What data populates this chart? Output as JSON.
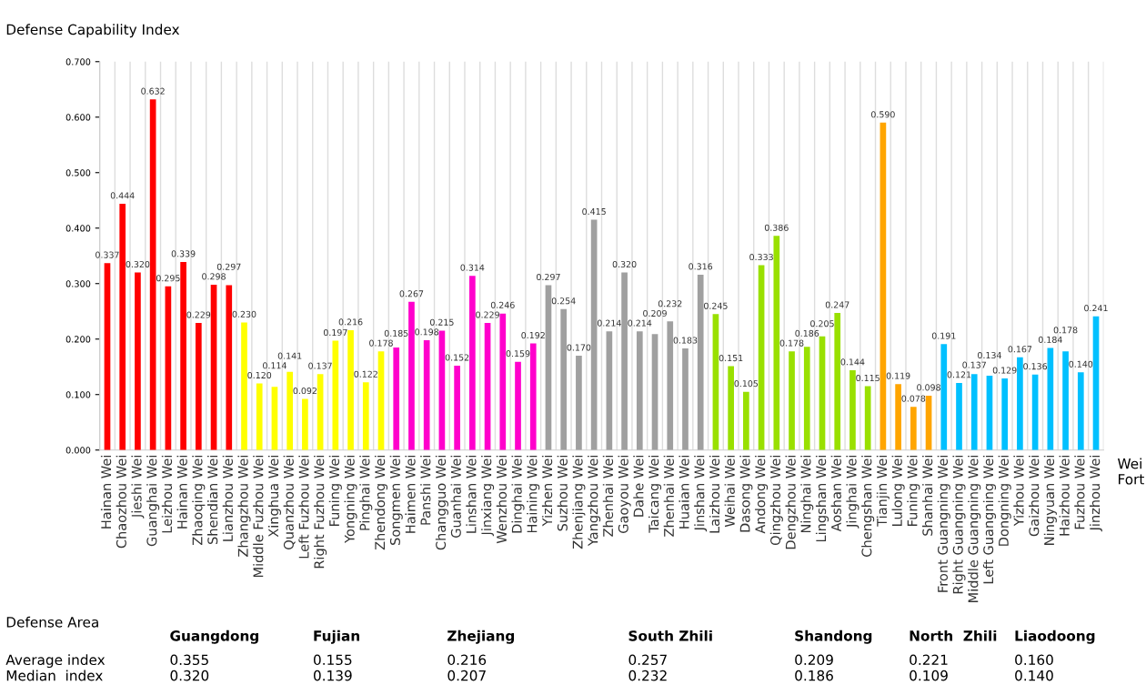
{
  "chart_data": {
    "type": "bar",
    "ylabel": "Defense Capability Index",
    "xlabel": "Wei Fort",
    "categories": [
      "Hainan Wei",
      "Chaozhou Wei",
      "Jieshi Wei",
      "Guanghai Wei",
      "Leizhou Wei",
      "Hainan Wei",
      "Zhaoqing Wei",
      "Shendian Wei",
      "Lianzhou Wei",
      "Zhangzhou Wei",
      "Middle Fuzhou Wei",
      "Xinghua Wei",
      "Quanzhou Wei",
      "Left Fuzhou Wei",
      "Right Fuzhou Wei",
      "Funing Wei",
      "Yongning Wei",
      "Pinghai Wei",
      "Zhendong Wei",
      "Songmen Wei",
      "Haimen Wei",
      "Panshi Wei",
      "Changguo Wei",
      "Guanhai Wei",
      "Linshan Wei",
      "Jinxiang Wei",
      "Wenzhou Wei",
      "Dinghai Wei",
      "Haining Wei",
      "Yizhen Wei",
      "Suzhou Wei",
      "Zhenjiang Wei",
      "Yangzhou Wei",
      "Zhenhai Wei",
      "Gaoyou Wei",
      "Dahe Wei",
      "Taicang Wei",
      "Zhenhai Wei",
      "Huaian Wei",
      "Jinshan Wei",
      "Laizhou Wei",
      "Weihai Wei",
      "Dasong Wei",
      "Andong Wei",
      "Qingzhou Wei",
      "Dengzhou Wei",
      "Ninghai Wei",
      "Lingshan Wei",
      "Aoshan Wei",
      "Jinghai Wei",
      "Chengshan Wei",
      "Tianjin Wei",
      "Lulong Wei",
      "Funing Wei",
      "Shanhai Wei",
      "Front Guangning Wei",
      "Right Guangning Wei",
      "Middle Guangning Wei",
      "Left Guangning Wei",
      "Dongning Wei",
      "Yizhou Wei",
      "Gaizhou Wei",
      "Ningyuan Wei",
      "Haizhou Wei",
      "Fuzhou Wei",
      "Jinzhou Wei"
    ],
    "values": [
      0.337,
      0.444,
      0.32,
      0.632,
      0.295,
      0.339,
      0.229,
      0.298,
      0.297,
      0.23,
      0.12,
      0.114,
      0.141,
      0.092,
      0.137,
      0.197,
      0.216,
      0.122,
      0.178,
      0.185,
      0.267,
      0.198,
      0.215,
      0.152,
      0.314,
      0.229,
      0.246,
      0.159,
      0.192,
      0.297,
      0.254,
      0.17,
      0.415,
      0.214,
      0.32,
      0.214,
      0.209,
      0.232,
      0.183,
      0.316,
      0.245,
      0.151,
      0.105,
      0.333,
      0.386,
      0.178,
      0.186,
      0.205,
      0.247,
      0.144,
      0.115,
      0.59,
      0.119,
      0.078,
      0.098,
      0.191,
      0.121,
      0.137,
      0.134,
      0.129,
      0.167,
      0.136,
      0.184,
      0.178,
      0.14,
      0.241
    ],
    "value_labels": [
      "0.337",
      "0.444",
      "0.320",
      "0.632",
      "0.295",
      "0.339",
      "0.229",
      "0.298",
      "0.297",
      "0.230",
      "0.120",
      "0.114",
      "0.141",
      "0.092",
      "0.137",
      "0.197",
      "0.216",
      "0.122",
      "0.178",
      "0.185",
      "0.267",
      "0.198",
      "0.215",
      "0.152",
      "0.314",
      "0.229",
      "0.246",
      "0.159",
      "0.192",
      "0.297",
      "0.254",
      "0.170",
      "0.415",
      "0.214",
      "0.320",
      "0.214",
      "0.209",
      "0.232",
      "0.183",
      "0.316",
      "0.245",
      "0.151",
      "0.105",
      "0.333",
      "0.386",
      "0.178",
      "0.186",
      "0.205",
      "0.247",
      "0.144",
      "0.115",
      "0.590",
      "0.119",
      "0.078",
      "0.098",
      "0.191",
      "0.121",
      "0.137",
      "0.134",
      "0.129",
      "0.167",
      "0.136",
      "0.184",
      "0.178",
      "0.140",
      "0.241"
    ],
    "colors": [
      "#ff0000",
      "#ff0000",
      "#ff0000",
      "#ff0000",
      "#ff0000",
      "#ff0000",
      "#ff0000",
      "#ff0000",
      "#ff0000",
      "#ffff00",
      "#ffff00",
      "#ffff00",
      "#ffff00",
      "#ffff00",
      "#ffff00",
      "#ffff00",
      "#ffff00",
      "#ffff00",
      "#ffff00",
      "#ff00cc",
      "#ff00cc",
      "#ff00cc",
      "#ff00cc",
      "#ff00cc",
      "#ff00cc",
      "#ff00cc",
      "#ff00cc",
      "#ff00cc",
      "#ff00cc",
      "#a0a0a0",
      "#a0a0a0",
      "#a0a0a0",
      "#a0a0a0",
      "#a0a0a0",
      "#a0a0a0",
      "#a0a0a0",
      "#a0a0a0",
      "#a0a0a0",
      "#a0a0a0",
      "#a0a0a0",
      "#99e000",
      "#99e000",
      "#99e000",
      "#99e000",
      "#99e000",
      "#99e000",
      "#99e000",
      "#99e000",
      "#99e000",
      "#99e000",
      "#99e000",
      "#ffa500",
      "#ffa500",
      "#ffa500",
      "#ffa500",
      "#00c0ff",
      "#00c0ff",
      "#00c0ff",
      "#00c0ff",
      "#00c0ff",
      "#00c0ff",
      "#00c0ff",
      "#00c0ff",
      "#00c0ff",
      "#00c0ff",
      "#00c0ff"
    ],
    "ylim": [
      0,
      0.7
    ],
    "yticks": [
      {
        "value": 0,
        "label": "0.000"
      },
      {
        "value": 0.1,
        "label": "0.100"
      },
      {
        "value": 0.2,
        "label": "0.200"
      },
      {
        "value": 0.3,
        "label": "0.300"
      },
      {
        "value": 0.4,
        "label": "0.400"
      },
      {
        "value": 0.5,
        "label": "0.500"
      },
      {
        "value": 0.6,
        "label": "0.600"
      },
      {
        "value": 0.7,
        "label": "0.700"
      }
    ],
    "grid": "x",
    "legend": false,
    "annotations": [
      "Defense Area",
      "Guangdong",
      "Fujian",
      "Zhejiang",
      "South Zhili",
      "Shandong",
      "North  Zhili",
      "Liaodoong",
      "Average index",
      "0.355",
      "0.155",
      "0.216",
      "0.257",
      "0.209",
      "0.221",
      "0.160",
      "Median  index",
      "0.320",
      "0.139",
      "0.207",
      "0.232",
      "0.186",
      "0.109",
      "0.140"
    ]
  }
}
